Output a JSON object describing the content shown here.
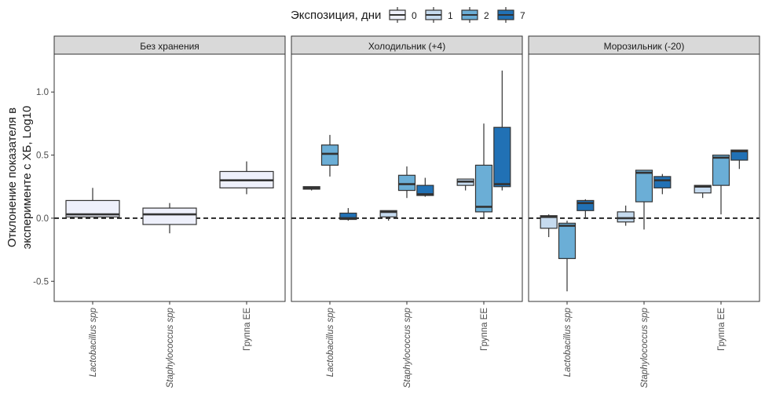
{
  "chart_data": {
    "type": "boxplot",
    "legend": {
      "title": "Экспозиция, дни",
      "position": "top",
      "entries": [
        {
          "label": "0",
          "color": "#eef0fb"
        },
        {
          "label": "1",
          "color": "#c6dbef"
        },
        {
          "label": "2",
          "color": "#6baed6"
        },
        {
          "label": "7",
          "color": "#2171b5"
        }
      ]
    },
    "ylabel_lines": [
      "Отклонение показателя в",
      "эксперименте с ХБ, Log10"
    ],
    "ylim": [
      -0.66,
      1.3
    ],
    "yticks": [
      -0.5,
      0.0,
      0.5,
      1.0
    ],
    "ytick_labels": [
      "-0.5",
      "0.0",
      "0.5",
      "1.0"
    ],
    "reference_line": {
      "y": 0,
      "style": "dashed"
    },
    "categories": [
      "Lactobacillus spp",
      "Staphylococcus spp",
      "Группа ЕЕ"
    ],
    "panels": [
      {
        "title": "Без хранения",
        "boxes": [
          {
            "category": 0,
            "exposure": "0",
            "whisker_low": 0.01,
            "q1": 0.01,
            "median": 0.03,
            "q3": 0.14,
            "whisker_high": 0.24
          },
          {
            "category": 1,
            "exposure": "0",
            "whisker_low": -0.12,
            "q1": -0.05,
            "median": 0.03,
            "q3": 0.08,
            "whisker_high": 0.12
          },
          {
            "category": 2,
            "exposure": "0",
            "whisker_low": 0.19,
            "q1": 0.24,
            "median": 0.3,
            "q3": 0.37,
            "whisker_high": 0.45
          }
        ]
      },
      {
        "title": "Холодильник (+4)",
        "boxes": [
          {
            "category": 0,
            "exposure": "1",
            "whisker_low": 0.22,
            "q1": 0.23,
            "median": 0.24,
            "q3": 0.25,
            "whisker_high": 0.25
          },
          {
            "category": 0,
            "exposure": "2",
            "whisker_low": 0.33,
            "q1": 0.42,
            "median": 0.51,
            "q3": 0.58,
            "whisker_high": 0.66
          },
          {
            "category": 0,
            "exposure": "7",
            "whisker_low": -0.02,
            "q1": -0.01,
            "median": 0.0,
            "q3": 0.04,
            "whisker_high": 0.08
          },
          {
            "category": 1,
            "exposure": "1",
            "whisker_low": -0.02,
            "q1": 0.01,
            "median": 0.05,
            "q3": 0.06,
            "whisker_high": 0.06
          },
          {
            "category": 1,
            "exposure": "2",
            "whisker_low": 0.16,
            "q1": 0.22,
            "median": 0.27,
            "q3": 0.34,
            "whisker_high": 0.41
          },
          {
            "category": 1,
            "exposure": "7",
            "whisker_low": 0.17,
            "q1": 0.18,
            "median": 0.19,
            "q3": 0.26,
            "whisker_high": 0.32
          },
          {
            "category": 2,
            "exposure": "1",
            "whisker_low": 0.22,
            "q1": 0.26,
            "median": 0.29,
            "q3": 0.31,
            "whisker_high": 0.31
          },
          {
            "category": 2,
            "exposure": "2",
            "whisker_low": 0.0,
            "q1": 0.05,
            "median": 0.09,
            "q3": 0.42,
            "whisker_high": 0.75
          },
          {
            "category": 2,
            "exposure": "7",
            "whisker_low": 0.22,
            "q1": 0.25,
            "median": 0.27,
            "q3": 0.72,
            "whisker_high": 1.17
          }
        ]
      },
      {
        "title": "Морозильник (-20)",
        "boxes": [
          {
            "category": 0,
            "exposure": "1",
            "whisker_low": -0.15,
            "q1": -0.08,
            "median": 0.01,
            "q3": 0.02,
            "whisker_high": 0.03
          },
          {
            "category": 0,
            "exposure": "2",
            "whisker_low": -0.58,
            "q1": -0.32,
            "median": -0.06,
            "q3": -0.04,
            "whisker_high": -0.02
          },
          {
            "category": 0,
            "exposure": "7",
            "whisker_low": 0.0,
            "q1": 0.06,
            "median": 0.12,
            "q3": 0.14,
            "whisker_high": 0.15
          },
          {
            "category": 1,
            "exposure": "1",
            "whisker_low": -0.06,
            "q1": -0.03,
            "median": 0.0,
            "q3": 0.05,
            "whisker_high": 0.1
          },
          {
            "category": 1,
            "exposure": "2",
            "whisker_low": -0.09,
            "q1": 0.13,
            "median": 0.36,
            "q3": 0.38,
            "whisker_high": 0.38
          },
          {
            "category": 1,
            "exposure": "7",
            "whisker_low": 0.19,
            "q1": 0.24,
            "median": 0.3,
            "q3": 0.33,
            "whisker_high": 0.35
          },
          {
            "category": 2,
            "exposure": "1",
            "whisker_low": 0.16,
            "q1": 0.2,
            "median": 0.25,
            "q3": 0.26,
            "whisker_high": 0.26
          },
          {
            "category": 2,
            "exposure": "2",
            "whisker_low": 0.03,
            "q1": 0.26,
            "median": 0.48,
            "q3": 0.5,
            "whisker_high": 0.5
          },
          {
            "category": 2,
            "exposure": "7",
            "whisker_low": 0.39,
            "q1": 0.46,
            "median": 0.53,
            "q3": 0.54,
            "whisker_high": 0.54
          }
        ]
      }
    ]
  }
}
